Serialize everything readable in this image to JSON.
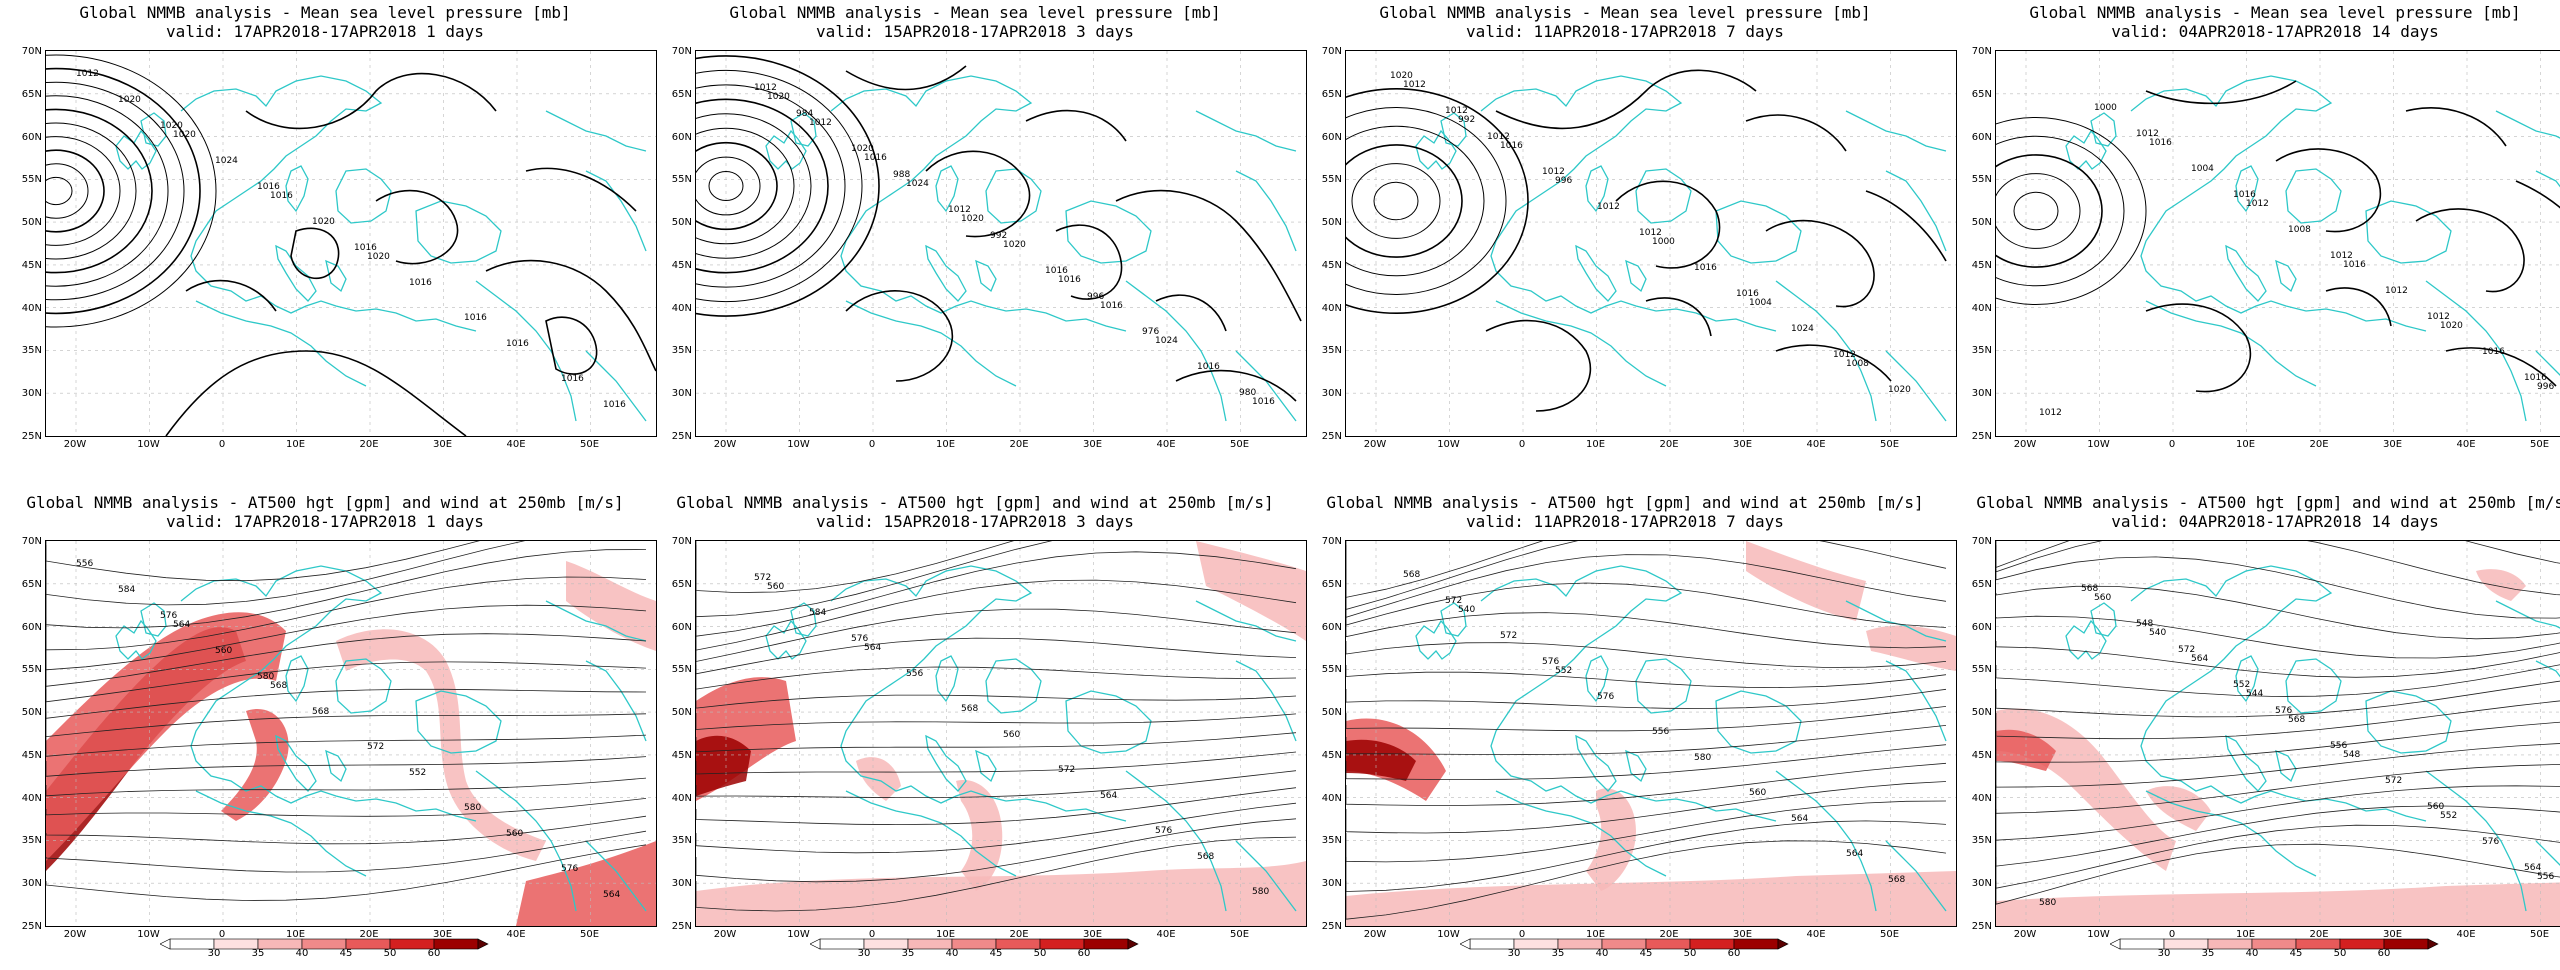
{
  "row_top_title": "Global NMMB analysis - Mean sea level pressure [mb]",
  "row_bottom_title": "Global NMMB analysis - AT500 hgt [gpm] and wind at 250mb [m/s]",
  "lat_labels": [
    "70N",
    "65N",
    "60N",
    "55N",
    "50N",
    "45N",
    "40N",
    "35N",
    "30N",
    "25N"
  ],
  "lon_labels": [
    "20W",
    "10W",
    "0",
    "10E",
    "20E",
    "30E",
    "40E",
    "50E"
  ],
  "colorbar_ticks": [
    "30",
    "35",
    "40",
    "45",
    "50",
    "60"
  ],
  "colors": {
    "coast": "#2ec8c8",
    "isobar": "#000000",
    "jet_light": "#f7b8b8",
    "jet_mid": "#e85a5a",
    "jet_dark": "#9c0000"
  },
  "panels": [
    {
      "id": "mslp-1",
      "validity": "valid: 17APR2018-17APR2018   1 days",
      "icon": "mslp-map-icon",
      "contour_labels": [
        "1012",
        "1020",
        "1016",
        "1020",
        "1016",
        "1016",
        "1020",
        "1024",
        "1020",
        "1016",
        "1016",
        "1016",
        "1020",
        "1016",
        "1016"
      ]
    },
    {
      "id": "mslp-3",
      "validity": "valid: 15APR2018-17APR2018   3 days",
      "icon": "mslp-map-icon",
      "contour_labels": [
        "1020",
        "1016",
        "1020",
        "1016",
        "1024",
        "1016",
        "1012",
        "1024",
        "1020",
        "1016",
        "1016",
        "1012",
        "1020",
        "1012",
        "1016",
        "976",
        "980",
        "984",
        "988",
        "992",
        "996"
      ]
    },
    {
      "id": "mslp-7",
      "validity": "valid: 11APR2018-17APR2018   7 days",
      "icon": "mslp-map-icon",
      "contour_labels": [
        "992",
        "996",
        "1000",
        "1004",
        "1008",
        "1012",
        "1016",
        "1012",
        "1016",
        "1024",
        "1020",
        "1012",
        "1012",
        "1012",
        "1016",
        "1012",
        "1020",
        "1012"
      ]
    },
    {
      "id": "mslp-14",
      "validity": "valid: 04APR2018-17APR2018   14 days",
      "icon": "mslp-map-icon",
      "contour_labels": [
        "1016",
        "1012",
        "1016",
        "1020",
        "996",
        "1000",
        "1004",
        "1008",
        "1012",
        "1016",
        "1012",
        "1012",
        "1016",
        "1012",
        "1012",
        "1016"
      ]
    },
    {
      "id": "z500-1",
      "validity": "valid: 17APR2018-17APR2018   1 days",
      "icon": "z500-map-icon",
      "contour_labels": [
        "556",
        "564",
        "568",
        "572",
        "580",
        "576",
        "584",
        "560",
        "568",
        "552",
        "560",
        "564",
        "576",
        "580"
      ]
    },
    {
      "id": "z500-3",
      "validity": "valid: 15APR2018-17APR2018   3 days",
      "icon": "z500-map-icon",
      "contour_labels": [
        "560",
        "564",
        "568",
        "572",
        "576",
        "580",
        "584",
        "556",
        "560",
        "564",
        "568",
        "572",
        "576"
      ]
    },
    {
      "id": "z500-7",
      "validity": "valid: 11APR2018-17APR2018   7 days",
      "icon": "z500-map-icon",
      "contour_labels": [
        "540",
        "552",
        "556",
        "560",
        "564",
        "568",
        "572",
        "576",
        "580",
        "564",
        "568",
        "572",
        "576"
      ]
    },
    {
      "id": "z500-14",
      "validity": "valid: 04APR2018-17APR2018   14 days",
      "icon": "z500-map-icon",
      "contour_labels": [
        "540",
        "544",
        "548",
        "552",
        "556",
        "560",
        "564",
        "568",
        "572",
        "576",
        "580",
        "548",
        "552",
        "556",
        "560",
        "564",
        "568",
        "572",
        "576"
      ]
    }
  ]
}
